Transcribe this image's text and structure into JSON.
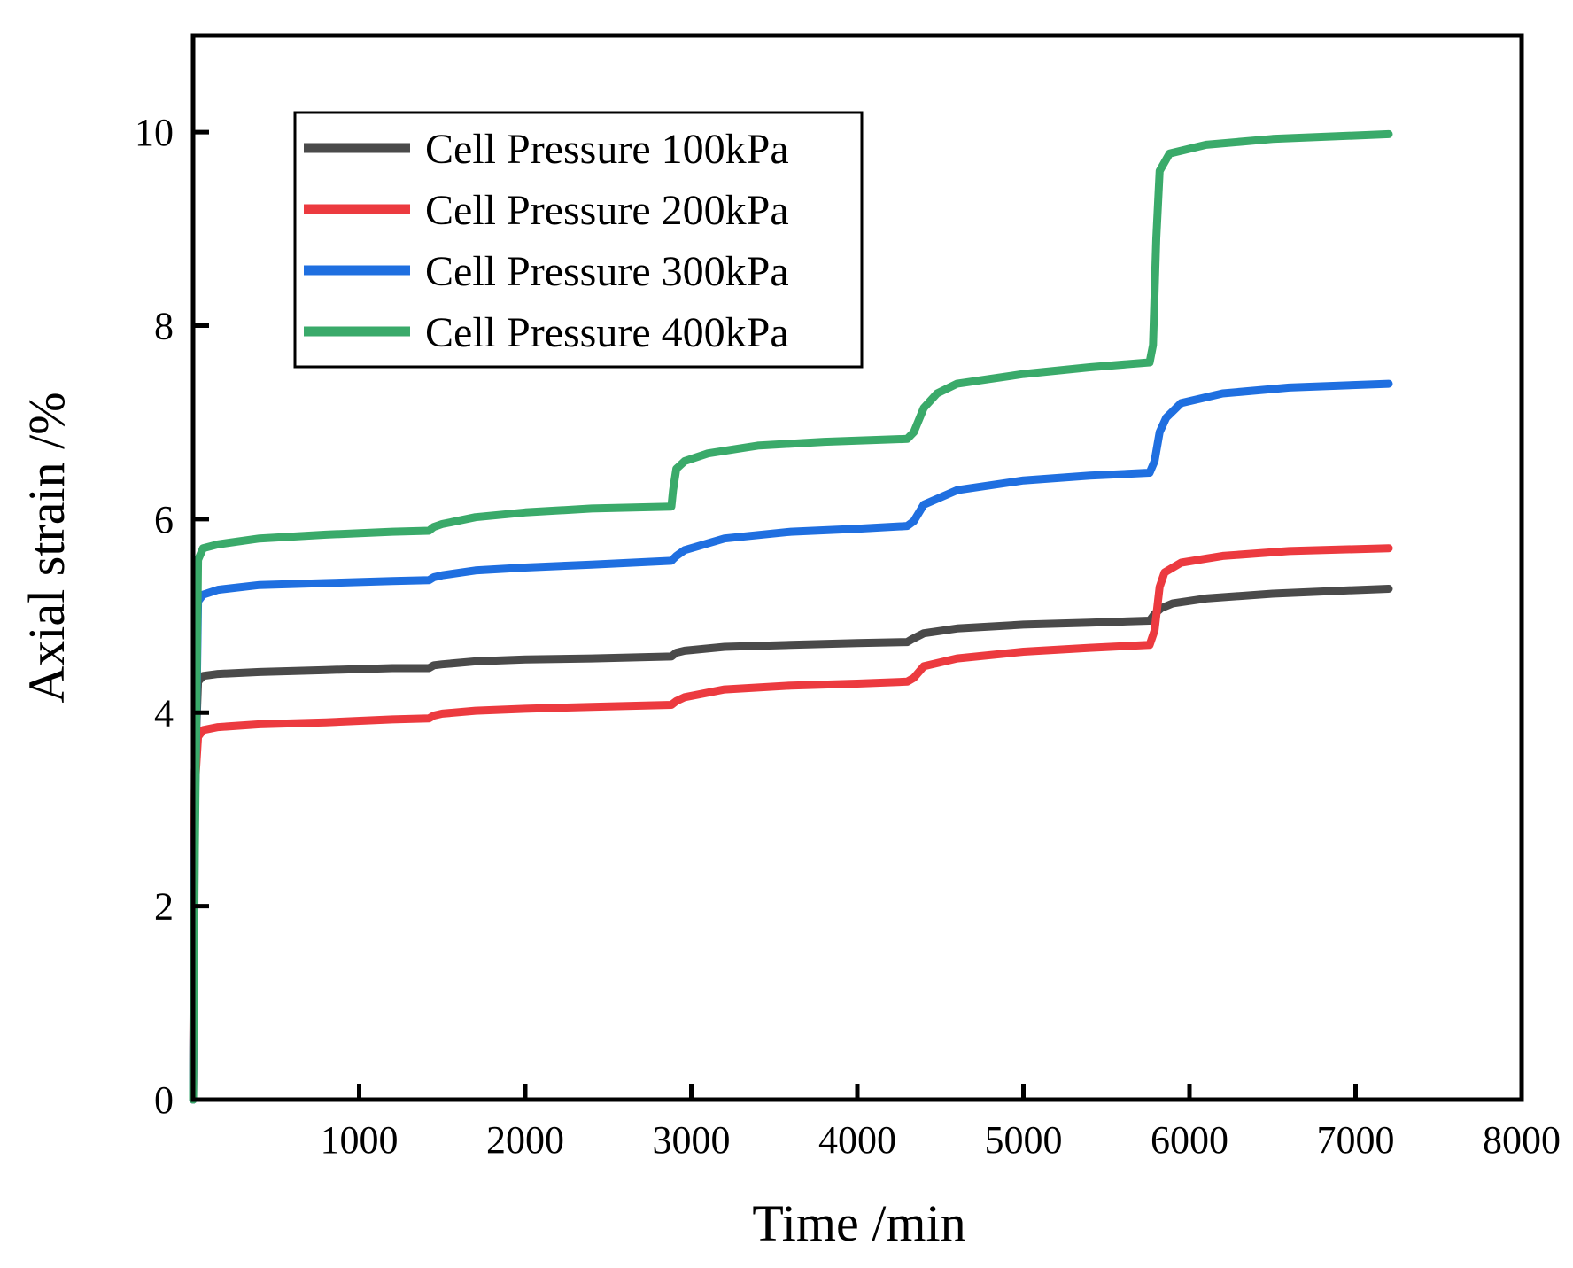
{
  "chart_data": {
    "type": "line",
    "xlabel": "Time /min",
    "ylabel": "Axial strain /%",
    "xlim": [
      0,
      8000
    ],
    "ylim": [
      0,
      11
    ],
    "xticks": [
      1000,
      2000,
      3000,
      4000,
      5000,
      6000,
      7000,
      8000
    ],
    "xtick_labels": [
      "1000",
      "2000",
      "3000",
      "4000",
      "5000",
      "6000",
      "7000",
      "8000"
    ],
    "yticks": [
      0,
      2,
      4,
      6,
      8,
      10
    ],
    "ytick_labels": [
      "0",
      "2",
      "4",
      "6",
      "8",
      "10"
    ],
    "grid": false,
    "legend_position": "top-left",
    "series": [
      {
        "name": "Cell Pressure 100kPa",
        "color": "#4a4a4a",
        "x": [
          0,
          10,
          30,
          60,
          150,
          400,
          800,
          1200,
          1420,
          1450,
          1500,
          1700,
          2000,
          2400,
          2880,
          2910,
          2960,
          3200,
          3600,
          4000,
          4300,
          4330,
          4400,
          4600,
          5000,
          5400,
          5760,
          5790,
          5830,
          5900,
          6100,
          6500,
          6900,
          7200
        ],
        "y": [
          0,
          3.4,
          4.32,
          4.38,
          4.4,
          4.42,
          4.44,
          4.46,
          4.46,
          4.49,
          4.5,
          4.53,
          4.55,
          4.56,
          4.58,
          4.62,
          4.64,
          4.68,
          4.7,
          4.72,
          4.73,
          4.76,
          4.82,
          4.87,
          4.91,
          4.93,
          4.95,
          5.02,
          5.08,
          5.13,
          5.18,
          5.23,
          5.26,
          5.28
        ]
      },
      {
        "name": "Cell Pressure 200kPa",
        "color": "#ec3a3f",
        "x": [
          0,
          10,
          30,
          60,
          150,
          400,
          800,
          1200,
          1420,
          1450,
          1500,
          1700,
          2000,
          2400,
          2880,
          2910,
          2960,
          3200,
          3600,
          4000,
          4300,
          4340,
          4400,
          4600,
          5000,
          5400,
          5760,
          5790,
          5820,
          5850,
          5950,
          6200,
          6600,
          7200
        ],
        "y": [
          0,
          3.2,
          3.75,
          3.82,
          3.85,
          3.88,
          3.9,
          3.93,
          3.94,
          3.97,
          3.99,
          4.02,
          4.04,
          4.06,
          4.08,
          4.12,
          4.16,
          4.24,
          4.28,
          4.3,
          4.32,
          4.36,
          4.48,
          4.56,
          4.63,
          4.67,
          4.7,
          4.85,
          5.3,
          5.45,
          5.55,
          5.62,
          5.67,
          5.7
        ]
      },
      {
        "name": "Cell Pressure 300kPa",
        "color": "#1f6fe0",
        "x": [
          0,
          10,
          30,
          60,
          150,
          400,
          800,
          1200,
          1420,
          1450,
          1500,
          1700,
          2000,
          2400,
          2880,
          2910,
          2960,
          3200,
          3600,
          4000,
          4300,
          4340,
          4400,
          4600,
          5000,
          5400,
          5760,
          5790,
          5820,
          5860,
          5950,
          6200,
          6600,
          7200
        ],
        "y": [
          0,
          2.8,
          5.15,
          5.22,
          5.27,
          5.32,
          5.34,
          5.36,
          5.37,
          5.4,
          5.42,
          5.47,
          5.5,
          5.53,
          5.57,
          5.62,
          5.68,
          5.8,
          5.87,
          5.9,
          5.93,
          5.98,
          6.15,
          6.3,
          6.4,
          6.45,
          6.48,
          6.6,
          6.9,
          7.05,
          7.2,
          7.3,
          7.36,
          7.4
        ]
      },
      {
        "name": "Cell Pressure 400kPa",
        "color": "#3aaa6a",
        "x": [
          0,
          10,
          30,
          60,
          150,
          400,
          800,
          1200,
          1420,
          1450,
          1500,
          1700,
          2000,
          2400,
          2880,
          2890,
          2910,
          2960,
          3100,
          3400,
          3800,
          4300,
          4340,
          4400,
          4480,
          4600,
          5000,
          5400,
          5760,
          5780,
          5800,
          5820,
          5880,
          6100,
          6500,
          7200
        ],
        "y": [
          0,
          2.5,
          5.58,
          5.7,
          5.74,
          5.8,
          5.84,
          5.87,
          5.88,
          5.92,
          5.95,
          6.02,
          6.07,
          6.11,
          6.13,
          6.3,
          6.52,
          6.6,
          6.68,
          6.76,
          6.8,
          6.83,
          6.9,
          7.15,
          7.3,
          7.4,
          7.5,
          7.57,
          7.62,
          7.8,
          8.9,
          9.6,
          9.78,
          9.87,
          9.93,
          9.98
        ]
      }
    ]
  }
}
